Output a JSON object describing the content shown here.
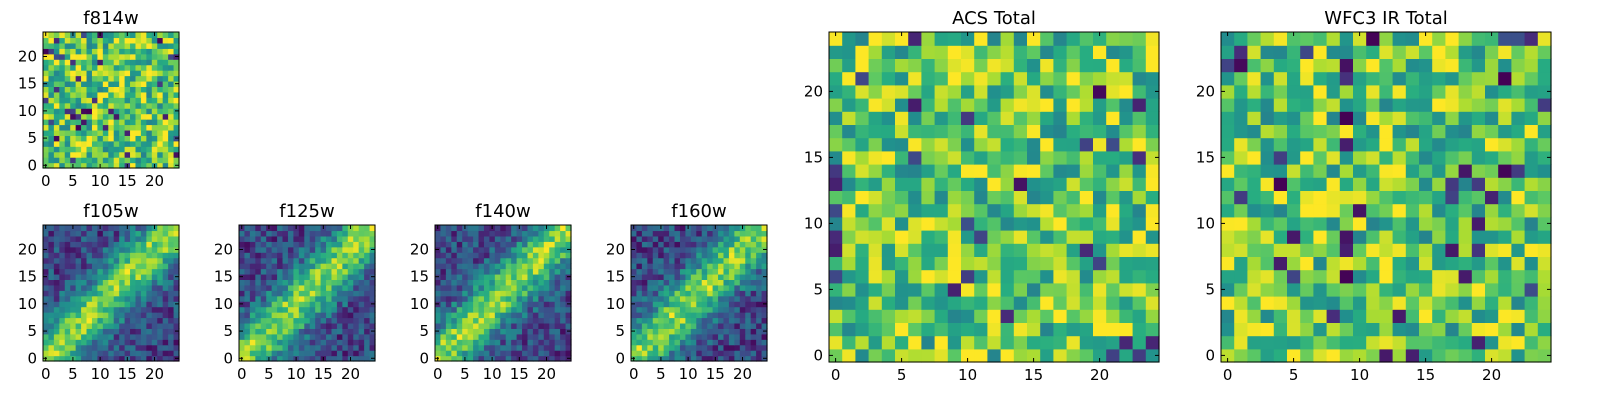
{
  "chart_data": [
    {
      "type": "heatmap",
      "title": "f814w",
      "pattern": "noise",
      "seed": 11,
      "grid": [
        25,
        25
      ],
      "xlim": [
        -0.5,
        24.5
      ],
      "ylim": [
        -0.5,
        24.5
      ],
      "xticks": [
        0,
        5,
        10,
        15,
        20
      ],
      "yticks": [
        0,
        5,
        10,
        15,
        20
      ],
      "colormap": "viridis",
      "value_range": [
        0,
        1
      ]
    },
    {
      "type": "heatmap",
      "title": "f105w",
      "pattern": "diagonal-band",
      "seed": 21,
      "grid": [
        25,
        25
      ],
      "xlim": [
        -0.5,
        24.5
      ],
      "ylim": [
        -0.5,
        24.5
      ],
      "xticks": [
        0,
        5,
        10,
        15,
        20
      ],
      "yticks": [
        0,
        5,
        10,
        15,
        20
      ],
      "colormap": "viridis",
      "value_range": [
        0,
        1
      ]
    },
    {
      "type": "heatmap",
      "title": "f125w",
      "pattern": "diagonal-band",
      "seed": 31,
      "grid": [
        25,
        25
      ],
      "xlim": [
        -0.5,
        24.5
      ],
      "ylim": [
        -0.5,
        24.5
      ],
      "xticks": [
        0,
        5,
        10,
        15,
        20
      ],
      "yticks": [
        0,
        5,
        10,
        15,
        20
      ],
      "colormap": "viridis",
      "value_range": [
        0,
        1
      ]
    },
    {
      "type": "heatmap",
      "title": "f140w",
      "pattern": "diagonal-band",
      "seed": 41,
      "grid": [
        25,
        25
      ],
      "xlim": [
        -0.5,
        24.5
      ],
      "ylim": [
        -0.5,
        24.5
      ],
      "xticks": [
        0,
        5,
        10,
        15,
        20
      ],
      "yticks": [
        0,
        5,
        10,
        15,
        20
      ],
      "colormap": "viridis",
      "value_range": [
        0,
        1
      ]
    },
    {
      "type": "heatmap",
      "title": "f160w",
      "pattern": "diagonal-band",
      "seed": 51,
      "grid": [
        25,
        25
      ],
      "xlim": [
        -0.5,
        24.5
      ],
      "ylim": [
        -0.5,
        24.5
      ],
      "xticks": [
        0,
        5,
        10,
        15,
        20
      ],
      "yticks": [
        0,
        5,
        10,
        15,
        20
      ],
      "colormap": "viridis",
      "value_range": [
        0,
        1
      ]
    },
    {
      "type": "heatmap",
      "title": "ACS Total",
      "pattern": "noise",
      "seed": 61,
      "grid": [
        25,
        25
      ],
      "xlim": [
        -0.5,
        24.5
      ],
      "ylim": [
        -0.5,
        24.5
      ],
      "xticks": [
        0,
        5,
        10,
        15,
        20
      ],
      "yticks": [
        0,
        5,
        10,
        15,
        20
      ],
      "colormap": "viridis",
      "value_range": [
        0,
        1
      ]
    },
    {
      "type": "heatmap",
      "title": "WFC3 IR Total",
      "pattern": "noise",
      "seed": 71,
      "grid": [
        25,
        25
      ],
      "xlim": [
        -0.5,
        24.5
      ],
      "ylim": [
        -0.5,
        24.5
      ],
      "xticks": [
        0,
        5,
        10,
        15,
        20
      ],
      "yticks": [
        0,
        5,
        10,
        15,
        20
      ],
      "colormap": "viridis",
      "value_range": [
        0,
        1
      ]
    }
  ]
}
